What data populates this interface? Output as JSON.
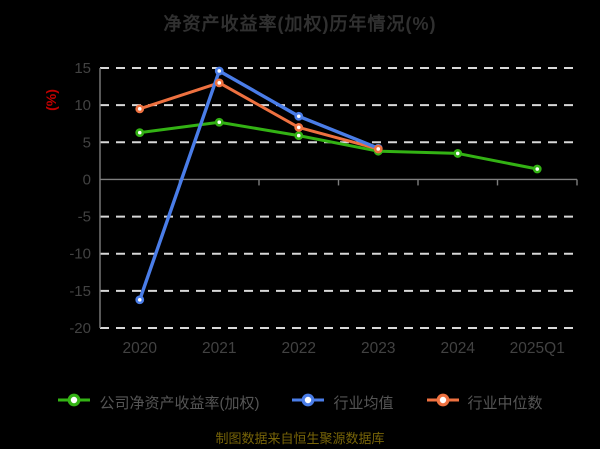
{
  "title": "净资产收益率(加权)历年情况(%)",
  "y_axis_label": "(%)",
  "footer": "制图数据来自恒生聚源数据库",
  "colors": {
    "background": "#000000",
    "title": "#303030",
    "tick_label": "#424242",
    "grid_line": "#d8d8d8",
    "axis_line": "#7e7e7e",
    "y_unit_label": "#c00000",
    "legend_text": "#555555",
    "footer_text": "#776408"
  },
  "legend": {
    "items": [
      {
        "label": "公司净资产收益率(加权)",
        "color": "#33b214"
      },
      {
        "label": "行业均值",
        "color": "#4a7de8"
      },
      {
        "label": "行业中位数",
        "color": "#ee7140"
      }
    ]
  },
  "chart_data": {
    "type": "line",
    "title": "净资产收益率(加权)历年情况(%)",
    "ylabel": "(%)",
    "categories": [
      "2020",
      "2021",
      "2022",
      "2023",
      "2024",
      "2025Q1"
    ],
    "yticks": [
      15,
      10,
      5,
      0,
      -5,
      -10,
      -15,
      -20
    ],
    "ylim": [
      -20,
      15
    ],
    "grid": "horizontal-dashed",
    "legend_position": "bottom",
    "series": [
      {
        "name": "公司净资产收益率(加权)",
        "color": "#33b214",
        "values": [
          6.3,
          7.7,
          5.9,
          3.8,
          3.5,
          1.4
        ]
      },
      {
        "name": "行业均值",
        "color": "#4a7de8",
        "values": [
          -16.2,
          14.6,
          8.5,
          4.2,
          null,
          null
        ]
      },
      {
        "name": "行业中位数",
        "color": "#ee7140",
        "values": [
          9.5,
          13.0,
          7.0,
          4.1,
          null,
          null
        ]
      }
    ]
  }
}
